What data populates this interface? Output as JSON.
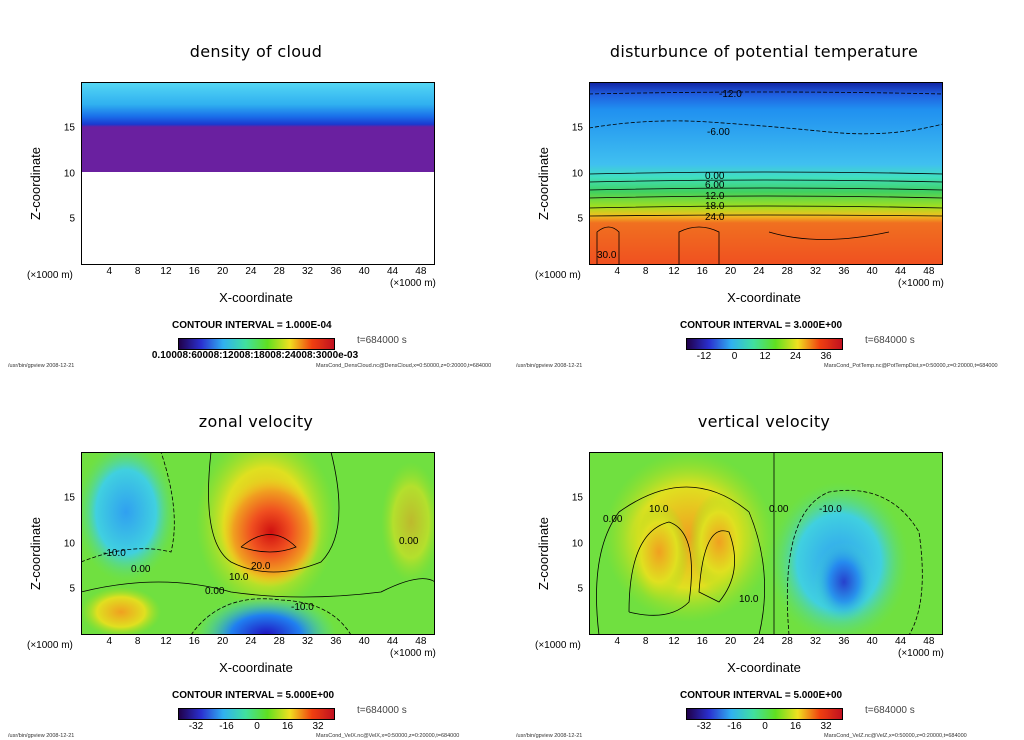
{
  "chart_data": [
    {
      "type": "heatmap",
      "title": "density of cloud",
      "xlabel": "X-coordinate",
      "ylabel": "Z-coordinate",
      "x_unit": "(×1000 m)",
      "xlim": [
        0,
        50
      ],
      "ylim": [
        0,
        20
      ],
      "xticks": [
        "4",
        "8",
        "12",
        "16",
        "20",
        "24",
        "28",
        "32",
        "36",
        "40",
        "44",
        "48"
      ],
      "yticks": [
        "5",
        "10",
        "15"
      ],
      "contour_interval": "CONTOUR INTERVAL = 1.000E-04",
      "time": "t=684000 s",
      "colorbar_labels": [
        "0.10008:60008:12008:18008:24008:3000e-03"
      ],
      "cloud_base_z": 10.3,
      "footer_left": "/usr/bin/gpview  2008-12-21",
      "footer_right": "MarsCond_DensCloud.nc@DensCloud,x=0:50000,z=0:20000,t=684000"
    },
    {
      "type": "heatmap",
      "title": "disturbunce of potential temperature",
      "xlabel": "X-coordinate",
      "ylabel": "Z-coordinate",
      "x_unit": "(×1000 m)",
      "xlim": [
        0,
        50
      ],
      "ylim": [
        0,
        20
      ],
      "xticks": [
        "4",
        "8",
        "12",
        "16",
        "20",
        "24",
        "28",
        "32",
        "36",
        "40",
        "44",
        "48"
      ],
      "yticks": [
        "5",
        "10",
        "15"
      ],
      "contour_interval": "CONTOUR INTERVAL = 3.000E+00",
      "time": "t=684000 s",
      "colorbar_labels": [
        "-12",
        "0",
        "12",
        "24",
        "36"
      ],
      "contour_labels": [
        "-12.0",
        "-6.00",
        "0.00",
        "6.00",
        "12.0",
        "18.0",
        "24.0",
        "30.0"
      ],
      "footer_left": "/usr/bin/gpview  2008-12-21",
      "footer_right": "MarsCond_PotTemp.nc@PotTempDist,x=0:50000,z=0:20000,t=684000"
    },
    {
      "type": "heatmap",
      "title": "zonal velocity",
      "xlabel": "X-coordinate",
      "ylabel": "Z-coordinate",
      "x_unit": "(×1000 m)",
      "xlim": [
        0,
        50
      ],
      "ylim": [
        0,
        20
      ],
      "xticks": [
        "4",
        "8",
        "12",
        "16",
        "20",
        "24",
        "28",
        "32",
        "36",
        "40",
        "44",
        "48"
      ],
      "yticks": [
        "5",
        "10",
        "15"
      ],
      "contour_interval": "CONTOUR INTERVAL = 5.000E+00",
      "time": "t=684000 s",
      "colorbar_labels": [
        "-32",
        "-16",
        "0",
        "16",
        "32"
      ],
      "contour_labels": [
        "-10.0",
        "0.00",
        "20.0",
        "10.0",
        "0.00",
        "-10.0",
        "0.00"
      ],
      "footer_left": "/usr/bin/gpview  2008-12-21",
      "footer_right": "MarsCond_VelX.nc@VelX,x=0:50000,z=0:20000,t=684000"
    },
    {
      "type": "heatmap",
      "title": "vertical velocity",
      "xlabel": "X-coordinate",
      "ylabel": "Z-coordinate",
      "x_unit": "(×1000 m)",
      "xlim": [
        0,
        50
      ],
      "ylim": [
        0,
        20
      ],
      "xticks": [
        "4",
        "8",
        "12",
        "16",
        "20",
        "24",
        "28",
        "32",
        "36",
        "40",
        "44",
        "48"
      ],
      "yticks": [
        "5",
        "10",
        "15"
      ],
      "contour_interval": "CONTOUR INTERVAL = 5.000E+00",
      "time": "t=684000 s",
      "colorbar_labels": [
        "-32",
        "-16",
        "0",
        "16",
        "32"
      ],
      "contour_labels": [
        "0.00",
        "10.0",
        "0.00",
        "-10.0",
        "10.0"
      ],
      "footer_left": "/usr/bin/gpview  2008-12-21",
      "footer_right": "MarsCond_VelZ.nc@VelZ,x=0:50000,z=0:20000,t=684000"
    }
  ]
}
